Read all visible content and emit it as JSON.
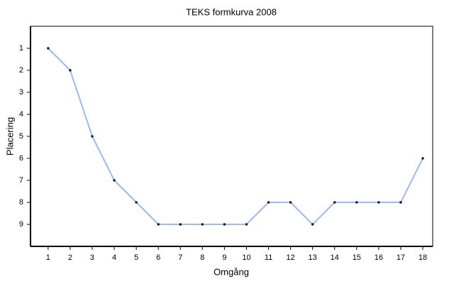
{
  "chart_data": {
    "type": "line",
    "title": "TEKS formkurva 2008",
    "x_label": "Omgång",
    "y_label": "Placering",
    "x": [
      1,
      2,
      3,
      4,
      5,
      6,
      7,
      8,
      9,
      10,
      11,
      12,
      13,
      14,
      15,
      16,
      17,
      18
    ],
    "values": [
      1,
      2,
      5,
      7,
      8,
      9,
      9,
      9,
      9,
      9,
      8,
      8,
      9,
      8,
      8,
      8,
      8,
      6
    ],
    "color": "#9db9f2",
    "marker_color": "#000000",
    "xlim": [
      0.2,
      18.45
    ],
    "xticks": [
      1,
      2,
      3,
      4,
      5,
      6,
      7,
      8,
      9,
      10,
      11,
      12,
      13,
      14,
      15,
      16,
      17,
      18
    ],
    "ylim": [
      0,
      10
    ],
    "yticks": [
      1,
      2,
      3,
      4,
      5,
      6,
      7,
      8,
      9
    ],
    "y_inverted": true,
    "grid": false
  }
}
